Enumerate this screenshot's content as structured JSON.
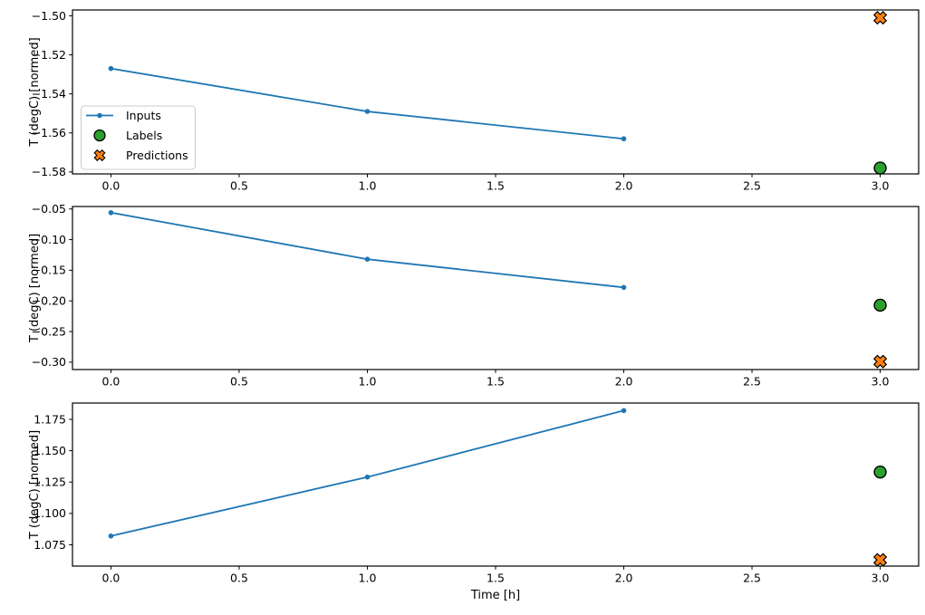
{
  "figure": {
    "xlabel": "Time [h]",
    "x_ticks": [
      0.0,
      0.5,
      1.0,
      1.5,
      2.0,
      2.5,
      3.0
    ],
    "x_tick_labels": [
      "0.0",
      "0.5",
      "1.0",
      "1.5",
      "2.0",
      "2.5",
      "3.0"
    ],
    "background": "#ffffff",
    "colors": {
      "inputs": "#1f77b4",
      "labels": "#2ca02c",
      "predictions": "#ff7f0e",
      "marker_edge": "#000000",
      "legend_border": "#cccccc",
      "axis": "#000000"
    }
  },
  "legend": {
    "entries": [
      {
        "label": "Inputs",
        "marker": "line-dot",
        "color": "#1f77b4"
      },
      {
        "label": "Labels",
        "marker": "circle",
        "color": "#2ca02c"
      },
      {
        "label": "Predictions",
        "marker": "X",
        "color": "#ff7f0e"
      }
    ]
  },
  "chart_data": [
    {
      "type": "line",
      "title": "",
      "xlabel": "",
      "ylabel": "T (degC) [normed]",
      "xlim": [
        -0.15,
        3.15
      ],
      "ylim": [
        -1.581,
        -1.497
      ],
      "yticks": [
        -1.58,
        -1.56,
        -1.54,
        -1.52,
        -1.5
      ],
      "ytick_labels": [
        "−1.58",
        "−1.56",
        "−1.54",
        "−1.52",
        "−1.50"
      ],
      "grid": false,
      "legend_visible": true,
      "legend_position": "center left",
      "series": [
        {
          "name": "Inputs",
          "kind": "line",
          "marker": "dot",
          "color": "#1f77b4",
          "x": [
            0,
            1,
            2
          ],
          "y": [
            -1.527,
            -1.549,
            -1.563
          ]
        },
        {
          "name": "Labels",
          "kind": "scatter",
          "marker": "circle",
          "color": "#2ca02c",
          "x": [
            3
          ],
          "y": [
            -1.578
          ]
        },
        {
          "name": "Predictions",
          "kind": "scatter",
          "marker": "X",
          "color": "#ff7f0e",
          "x": [
            3
          ],
          "y": [
            -1.501
          ]
        }
      ]
    },
    {
      "type": "line",
      "title": "",
      "xlabel": "",
      "ylabel": "T (degC) [normed]",
      "xlim": [
        -0.15,
        3.15
      ],
      "ylim": [
        -0.312,
        -0.046
      ],
      "yticks": [
        -0.3,
        -0.25,
        -0.2,
        -0.15,
        -0.1,
        -0.05
      ],
      "ytick_labels": [
        "−0.30",
        "−0.25",
        "−0.20",
        "−0.15",
        "−0.10",
        "−0.05"
      ],
      "grid": false,
      "legend_visible": false,
      "series": [
        {
          "name": "Inputs",
          "kind": "line",
          "marker": "dot",
          "color": "#1f77b4",
          "x": [
            0,
            1,
            2
          ],
          "y": [
            -0.056,
            -0.132,
            -0.178
          ]
        },
        {
          "name": "Labels",
          "kind": "scatter",
          "marker": "circle",
          "color": "#2ca02c",
          "x": [
            3
          ],
          "y": [
            -0.207
          ]
        },
        {
          "name": "Predictions",
          "kind": "scatter",
          "marker": "X",
          "color": "#ff7f0e",
          "x": [
            3
          ],
          "y": [
            -0.299
          ]
        }
      ]
    },
    {
      "type": "line",
      "title": "",
      "xlabel": "Time [h]",
      "ylabel": "T (degC) [normed]",
      "xlim": [
        -0.15,
        3.15
      ],
      "ylim": [
        1.058,
        1.188
      ],
      "yticks": [
        1.075,
        1.1,
        1.125,
        1.15,
        1.175
      ],
      "ytick_labels": [
        "1.075",
        "1.100",
        "1.125",
        "1.150",
        "1.175"
      ],
      "grid": false,
      "legend_visible": false,
      "series": [
        {
          "name": "Inputs",
          "kind": "line",
          "marker": "dot",
          "color": "#1f77b4",
          "x": [
            0,
            1,
            2
          ],
          "y": [
            1.082,
            1.129,
            1.182
          ]
        },
        {
          "name": "Labels",
          "kind": "scatter",
          "marker": "circle",
          "color": "#2ca02c",
          "x": [
            3
          ],
          "y": [
            1.133
          ]
        },
        {
          "name": "Predictions",
          "kind": "scatter",
          "marker": "X",
          "color": "#ff7f0e",
          "x": [
            3
          ],
          "y": [
            1.063
          ]
        }
      ]
    }
  ]
}
